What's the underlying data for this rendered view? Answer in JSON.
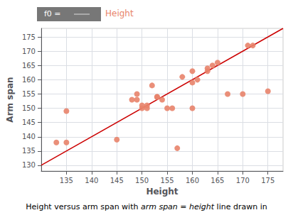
{
  "chart_data": {
    "type": "scatter",
    "xlabel": "Height",
    "ylabel": "Arm span",
    "series": [
      {
        "type": "scatter",
        "color": "#E8836A",
        "x": [
          133,
          135,
          135,
          145,
          148,
          149,
          149,
          150,
          150,
          151,
          151,
          152,
          153,
          153,
          154,
          155,
          156,
          157,
          158,
          160,
          160,
          160,
          161,
          163,
          163,
          164,
          165,
          167,
          170,
          171,
          172,
          175
        ],
        "values": [
          138,
          138,
          149,
          139,
          153,
          153,
          155,
          150,
          151,
          150,
          151,
          158,
          154,
          154,
          153,
          150,
          150,
          136,
          161,
          159,
          150,
          163,
          160,
          163,
          164,
          165,
          166,
          155,
          155,
          172,
          172,
          156
        ]
      },
      {
        "type": "line",
        "color": "#CC0000",
        "x": [
          130,
          178
        ],
        "values": [
          130,
          178
        ]
      }
    ],
    "xlim": [
      130,
      178
    ],
    "ylim": [
      128,
      178
    ],
    "xticks": [
      135,
      140,
      145,
      150,
      155,
      160,
      165,
      170,
      175
    ],
    "yticks": [
      130,
      135,
      140,
      145,
      150,
      155,
      160,
      165,
      170,
      175
    ],
    "grid": true,
    "annotations": [
      {
        "text": "f0 =",
        "color": "#777777"
      },
      {
        "text": "Height",
        "color": "#E8836A"
      },
      {
        "parts": [
          {
            "text": "Height versus arm span with ",
            "italic": false
          },
          {
            "text": "arm span = height",
            "italic": true
          },
          {
            "text": " line drawn in",
            "italic": false
          }
        ]
      }
    ]
  }
}
